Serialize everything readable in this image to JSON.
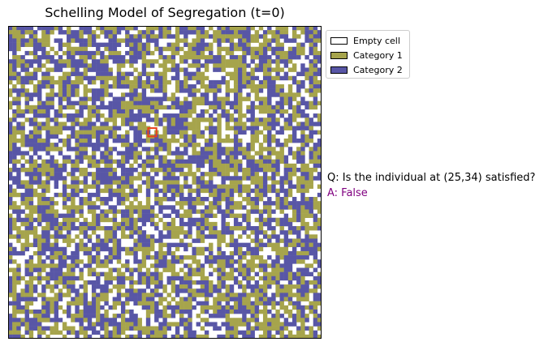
{
  "chart_data": {
    "type": "heatmap",
    "title": "Schelling Model of Segregation (t=0)",
    "grid_size": 75,
    "cell_fractions": {
      "empty": 0.25,
      "category_1": 0.38,
      "category_2": 0.37
    },
    "highlighted_cell": {
      "x": 25,
      "y": 34
    },
    "legend": {
      "placement": "upper-left-outside",
      "entries": [
        {
          "label": "Empty cell",
          "color": "#ffffff"
        },
        {
          "label": "Category 1",
          "color": "#a6a44c"
        },
        {
          "label": "Category 2",
          "color": "#5856a6"
        }
      ]
    },
    "highlight_color": "#e8401c",
    "axes_visible": false
  },
  "qa": {
    "question": "Q: Is the individual at (25,34) satisfied?",
    "answer": "A: False"
  }
}
